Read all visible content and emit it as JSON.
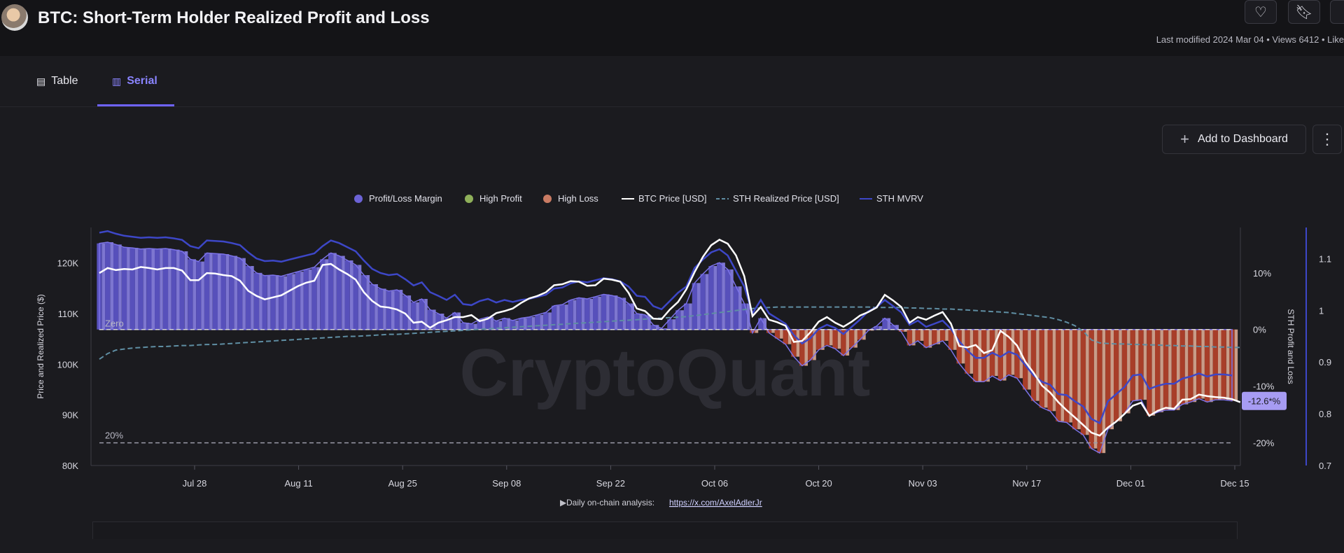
{
  "header": {
    "title": "BTC: Short-Term Holder Realized Profit and Loss",
    "meta": "Last modified 2024 Mar 04 • Views 6412 • Like",
    "heart_icon": "heart-icon",
    "bookmark_icon": "bookmark-icon"
  },
  "tabs": [
    {
      "label": "Table",
      "icon": "table-icon",
      "active": false
    },
    {
      "label": "Serial",
      "icon": "bar-chart-icon",
      "active": true
    }
  ],
  "toolbar": {
    "add_label": "Add to Dashboard",
    "more_icon": "vertical-dots-icon"
  },
  "colors": {
    "margin": "#6c63d6",
    "high_profit": "#8fb05a",
    "high_loss": "#c97b63",
    "loss_bar": "#b0402a",
    "price": "#ffffff",
    "sth_realized": "#5f8ea3",
    "sth_mvrv": "#3d47c7",
    "accent": "#6e63ff"
  },
  "chart_data": {
    "type": "area",
    "legend": [
      {
        "name": "Profit/Loss Margin",
        "kind": "dot",
        "color": "#6c63d6"
      },
      {
        "name": "High Profit",
        "kind": "dot",
        "color": "#8fb05a"
      },
      {
        "name": "High Loss",
        "kind": "dot",
        "color": "#c97b63"
      },
      {
        "name": "BTC Price [USD]",
        "kind": "line",
        "color": "#ffffff"
      },
      {
        "name": "STH Realized Price [USD]",
        "kind": "dash",
        "color": "#5f8ea3"
      },
      {
        "name": "STH MVRV",
        "kind": "line",
        "color": "#3d47c7"
      }
    ],
    "legend_position": "top-center",
    "x_ticks": [
      "Jul 28",
      "Aug 11",
      "Aug 25",
      "Sep 08",
      "Sep 22",
      "Oct 06",
      "Oct 20",
      "Nov 03",
      "Nov 17",
      "Dec 01",
      "Dec 15"
    ],
    "y_left": {
      "label": "Price and Realized Price ($)",
      "ticks": [
        "80K",
        "90K",
        "100K",
        "110K",
        "120K"
      ],
      "min": 80000,
      "max": 127000
    },
    "y_right1": {
      "label": "STH Profit and Loss",
      "ticks": [
        "10%",
        "0%",
        "-10%",
        "-20%"
      ],
      "min": -24,
      "max": 18
    },
    "y_right2": {
      "ticks": [
        "0.7",
        "0.8",
        "0.9",
        "1",
        "1.1"
      ],
      "min": 0.7,
      "max": 1.16
    },
    "ref_lines": [
      {
        "label": "Zero",
        "value": 0
      },
      {
        "label": "20%",
        "value": -20
      }
    ],
    "last_value_tag": "-12.6*%",
    "watermark": "CryptoQuant",
    "footer_text": "Daily on-chain analysis:",
    "footer_link": "https://x.com/AxelAdlerJr",
    "grid": false,
    "series": [
      {
        "name": "Profit/Loss Margin",
        "axis": "pct",
        "values": [
          15.2,
          15.4,
          15.0,
          14.5,
          14.4,
          14.2,
          14.3,
          14.2,
          14.3,
          14.1,
          13.8,
          12.4,
          12.0,
          13.5,
          13.4,
          13.3,
          13.0,
          12.6,
          11.2,
          10.0,
          9.5,
          9.6,
          9.4,
          9.8,
          10.2,
          10.6,
          11.0,
          12.4,
          13.5,
          13.0,
          12.2,
          11.4,
          9.6,
          8.0,
          7.2,
          6.8,
          7.0,
          6.0,
          4.8,
          5.4,
          3.5,
          2.8,
          2.0,
          3.0,
          1.2,
          1.0,
          1.8,
          2.2,
          1.5,
          2.0,
          1.6,
          2.0,
          2.2,
          2.6,
          3.0,
          4.2,
          4.4,
          5.2,
          5.6,
          5.4,
          5.8,
          6.2,
          6.0,
          5.6,
          4.6,
          2.8,
          2.6,
          0.8,
          0.2,
          1.8,
          3.4,
          4.6,
          8.2,
          9.8,
          11.2,
          11.8,
          10.6,
          7.6,
          4.6,
          -0.6,
          2.0,
          -0.6,
          -1.6,
          -2.6,
          -4.8,
          -6.4,
          -5.4,
          -3.6,
          -2.8,
          -3.4,
          -4.6,
          -3.2,
          -1.8,
          -0.2,
          0.6,
          2.0,
          0.8,
          -0.4,
          -2.8,
          -2.0,
          -3.2,
          -2.6,
          -2.0,
          -3.6,
          -6.0,
          -7.8,
          -9.2,
          -9.2,
          -8.2,
          -9.0,
          -8.0,
          -8.6,
          -10.6,
          -12.6,
          -13.8,
          -14.4,
          -16.2,
          -16.4,
          -17.6,
          -18.6,
          -21.0,
          -21.8,
          -17.6,
          -16.2,
          -14.8,
          -12.6,
          -12.4,
          -15.2,
          -14.6,
          -14.2,
          -14.2,
          -13.2,
          -12.8,
          -12.2,
          -12.8,
          -12.4,
          -12.4,
          -12.6
        ]
      },
      {
        "name": "BTC Price [USD]",
        "axis": "usd",
        "values": [
          118000,
          119000,
          118600,
          118800,
          118700,
          119200,
          119000,
          118700,
          119000,
          119000,
          118500,
          116600,
          116600,
          118000,
          117900,
          117600,
          117400,
          116500,
          114500,
          113500,
          112800,
          113200,
          113600,
          114500,
          115400,
          116100,
          116500,
          119600,
          119800,
          118700,
          117800,
          116700,
          114200,
          112500,
          111400,
          111200,
          110800,
          110000,
          108200,
          108400,
          107200,
          108200,
          108700,
          109300,
          109300,
          109700,
          108500,
          109000,
          110100,
          110500,
          111000,
          112100,
          113000,
          113500,
          114200,
          115600,
          115800,
          116400,
          116300,
          115500,
          115600,
          116900,
          116700,
          116300,
          114100,
          111000,
          110500,
          109000,
          108900,
          110800,
          112300,
          114800,
          118200,
          121200,
          123500,
          124600,
          123800,
          121500,
          117400,
          109500,
          111300,
          108800,
          108300,
          107600,
          104400,
          104600,
          106300,
          108400,
          109300,
          108200,
          107400,
          108400,
          109600,
          110300,
          111200,
          113700,
          112600,
          111300,
          108200,
          109300,
          108800,
          109600,
          110300,
          108000,
          103600,
          103300,
          103800,
          102200,
          102800,
          106600,
          105400,
          103700,
          100500,
          98300,
          95800,
          94400,
          92500,
          90900,
          89500,
          88000,
          86500,
          85900,
          87500,
          88700,
          90200,
          91800,
          92400,
          89800,
          90800,
          91400,
          91200,
          93000,
          93100,
          94000,
          93700,
          93500,
          93400,
          93100,
          92500
        ]
      },
      {
        "name": "STH Realized Price [USD]",
        "axis": "usd",
        "values": [
          101000,
          102100,
          102800,
          103000,
          103200,
          103300,
          103400,
          103500,
          103500,
          103600,
          103700,
          103700,
          103800,
          103900,
          103900,
          104000,
          104100,
          104200,
          104300,
          104400,
          104500,
          104600,
          104700,
          104800,
          104900,
          105000,
          105100,
          105200,
          105300,
          105400,
          105500,
          105500,
          105600,
          105700,
          105800,
          105900,
          105900,
          106000,
          106100,
          106200,
          106300,
          106400,
          106500,
          106600,
          106700,
          106800,
          106900,
          107000,
          107100,
          107200,
          107300,
          107400,
          107500,
          107600,
          107700,
          107800,
          107900,
          108000,
          108100,
          108200,
          108300,
          108400,
          108500,
          108600,
          108700,
          108800,
          108900,
          109000,
          109100,
          109200,
          109300,
          109400,
          109600,
          109800,
          110000,
          110200,
          110400,
          110600,
          110800,
          111000,
          111100,
          111200,
          111300,
          111300,
          111300,
          111300,
          111300,
          111300,
          111300,
          111300,
          111300,
          111300,
          111300,
          111300,
          111200,
          111200,
          111200,
          111200,
          111100,
          111100,
          111000,
          111000,
          110900,
          110900,
          110800,
          110700,
          110600,
          110500,
          110400,
          110300,
          110200,
          110000,
          109800,
          109600,
          109400,
          109200,
          108800,
          108300,
          107600,
          106500,
          104800,
          104200,
          104100,
          104000,
          104000,
          103900,
          103900,
          103800,
          103800,
          103700,
          103700,
          103600,
          103600,
          103500,
          103500,
          103400,
          103400,
          103300,
          103300
        ]
      },
      {
        "name": "STH MVRV",
        "axis": "mvrv",
        "values": [
          1.15,
          1.153,
          1.148,
          1.144,
          1.142,
          1.14,
          1.141,
          1.14,
          1.141,
          1.139,
          1.136,
          1.124,
          1.12,
          1.135,
          1.134,
          1.133,
          1.13,
          1.126,
          1.112,
          1.1,
          1.095,
          1.096,
          1.094,
          1.098,
          1.102,
          1.106,
          1.11,
          1.124,
          1.135,
          1.13,
          1.122,
          1.114,
          1.096,
          1.08,
          1.072,
          1.068,
          1.07,
          1.06,
          1.048,
          1.054,
          1.035,
          1.028,
          1.02,
          1.03,
          1.012,
          1.01,
          1.018,
          1.022,
          1.015,
          1.02,
          1.016,
          1.02,
          1.022,
          1.026,
          1.03,
          1.042,
          1.044,
          1.052,
          1.056,
          1.054,
          1.058,
          1.062,
          1.06,
          1.056,
          1.046,
          1.028,
          1.026,
          1.008,
          1.002,
          1.018,
          1.034,
          1.046,
          1.082,
          1.098,
          1.112,
          1.118,
          1.106,
          1.076,
          1.046,
          0.994,
          1.02,
          0.994,
          0.984,
          0.974,
          0.952,
          0.936,
          0.946,
          0.964,
          0.972,
          0.966,
          0.954,
          0.968,
          0.982,
          0.998,
          1.006,
          1.02,
          1.008,
          0.996,
          0.972,
          0.98,
          0.968,
          0.974,
          0.98,
          0.964,
          0.94,
          0.922,
          0.908,
          0.908,
          0.918,
          0.91,
          0.92,
          0.914,
          0.894,
          0.874,
          0.862,
          0.856,
          0.838,
          0.836,
          0.824,
          0.814,
          0.79,
          0.782,
          0.824,
          0.838,
          0.852,
          0.874,
          0.876,
          0.848,
          0.854,
          0.858,
          0.858,
          0.868,
          0.872,
          0.878,
          0.872,
          0.876,
          0.876,
          0.874
        ]
      }
    ]
  }
}
